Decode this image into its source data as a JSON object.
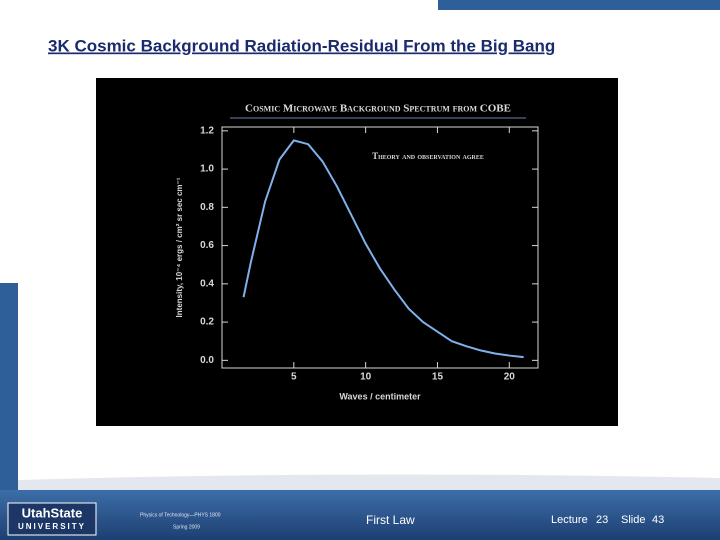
{
  "slide_title": "3K Cosmic Background Radiation-Residual From the Big Bang",
  "chart_data": {
    "type": "line",
    "title": "Cosmic Microwave Background Spectrum from COBE",
    "annotation": "Theory and observation agree",
    "xlabel": "Waves / centimeter",
    "ylabel": "Intensity, 10⁻⁴ ergs / cm² sr sec cm⁻¹",
    "x": [
      1.5,
      2,
      3,
      4,
      5,
      6,
      7,
      8,
      9,
      10,
      11,
      12,
      13,
      14,
      15,
      16,
      17,
      18,
      19,
      20,
      21
    ],
    "series": [
      {
        "color": "#7fb2ea",
        "values": [
          0.33,
          0.51,
          0.83,
          1.05,
          1.15,
          1.13,
          1.04,
          0.91,
          0.76,
          0.61,
          0.48,
          0.37,
          0.27,
          0.2,
          0.15,
          0.1,
          0.074,
          0.052,
          0.036,
          0.025,
          0.017
        ]
      }
    ],
    "xlim": [
      0,
      22
    ],
    "ylim": [
      -0.04,
      1.22
    ],
    "xticks": [
      5,
      10,
      15,
      20
    ],
    "yticks": [
      {
        "value": 0,
        "label": "0.0"
      },
      0.2,
      0.4,
      0.6,
      0.8,
      {
        "value": 1,
        "label": "1.0"
      },
      1.2
    ]
  },
  "footer": {
    "logo_top": "UtahState",
    "logo_bottom": "UNIVERSITY",
    "course": "Physics of Technology—PHYS 1800",
    "term": "Spring 2009",
    "topic": "First Law",
    "lecture_label": "Lecture",
    "lecture_number": "23",
    "slide_label": "Slide",
    "slide_number": "43"
  }
}
